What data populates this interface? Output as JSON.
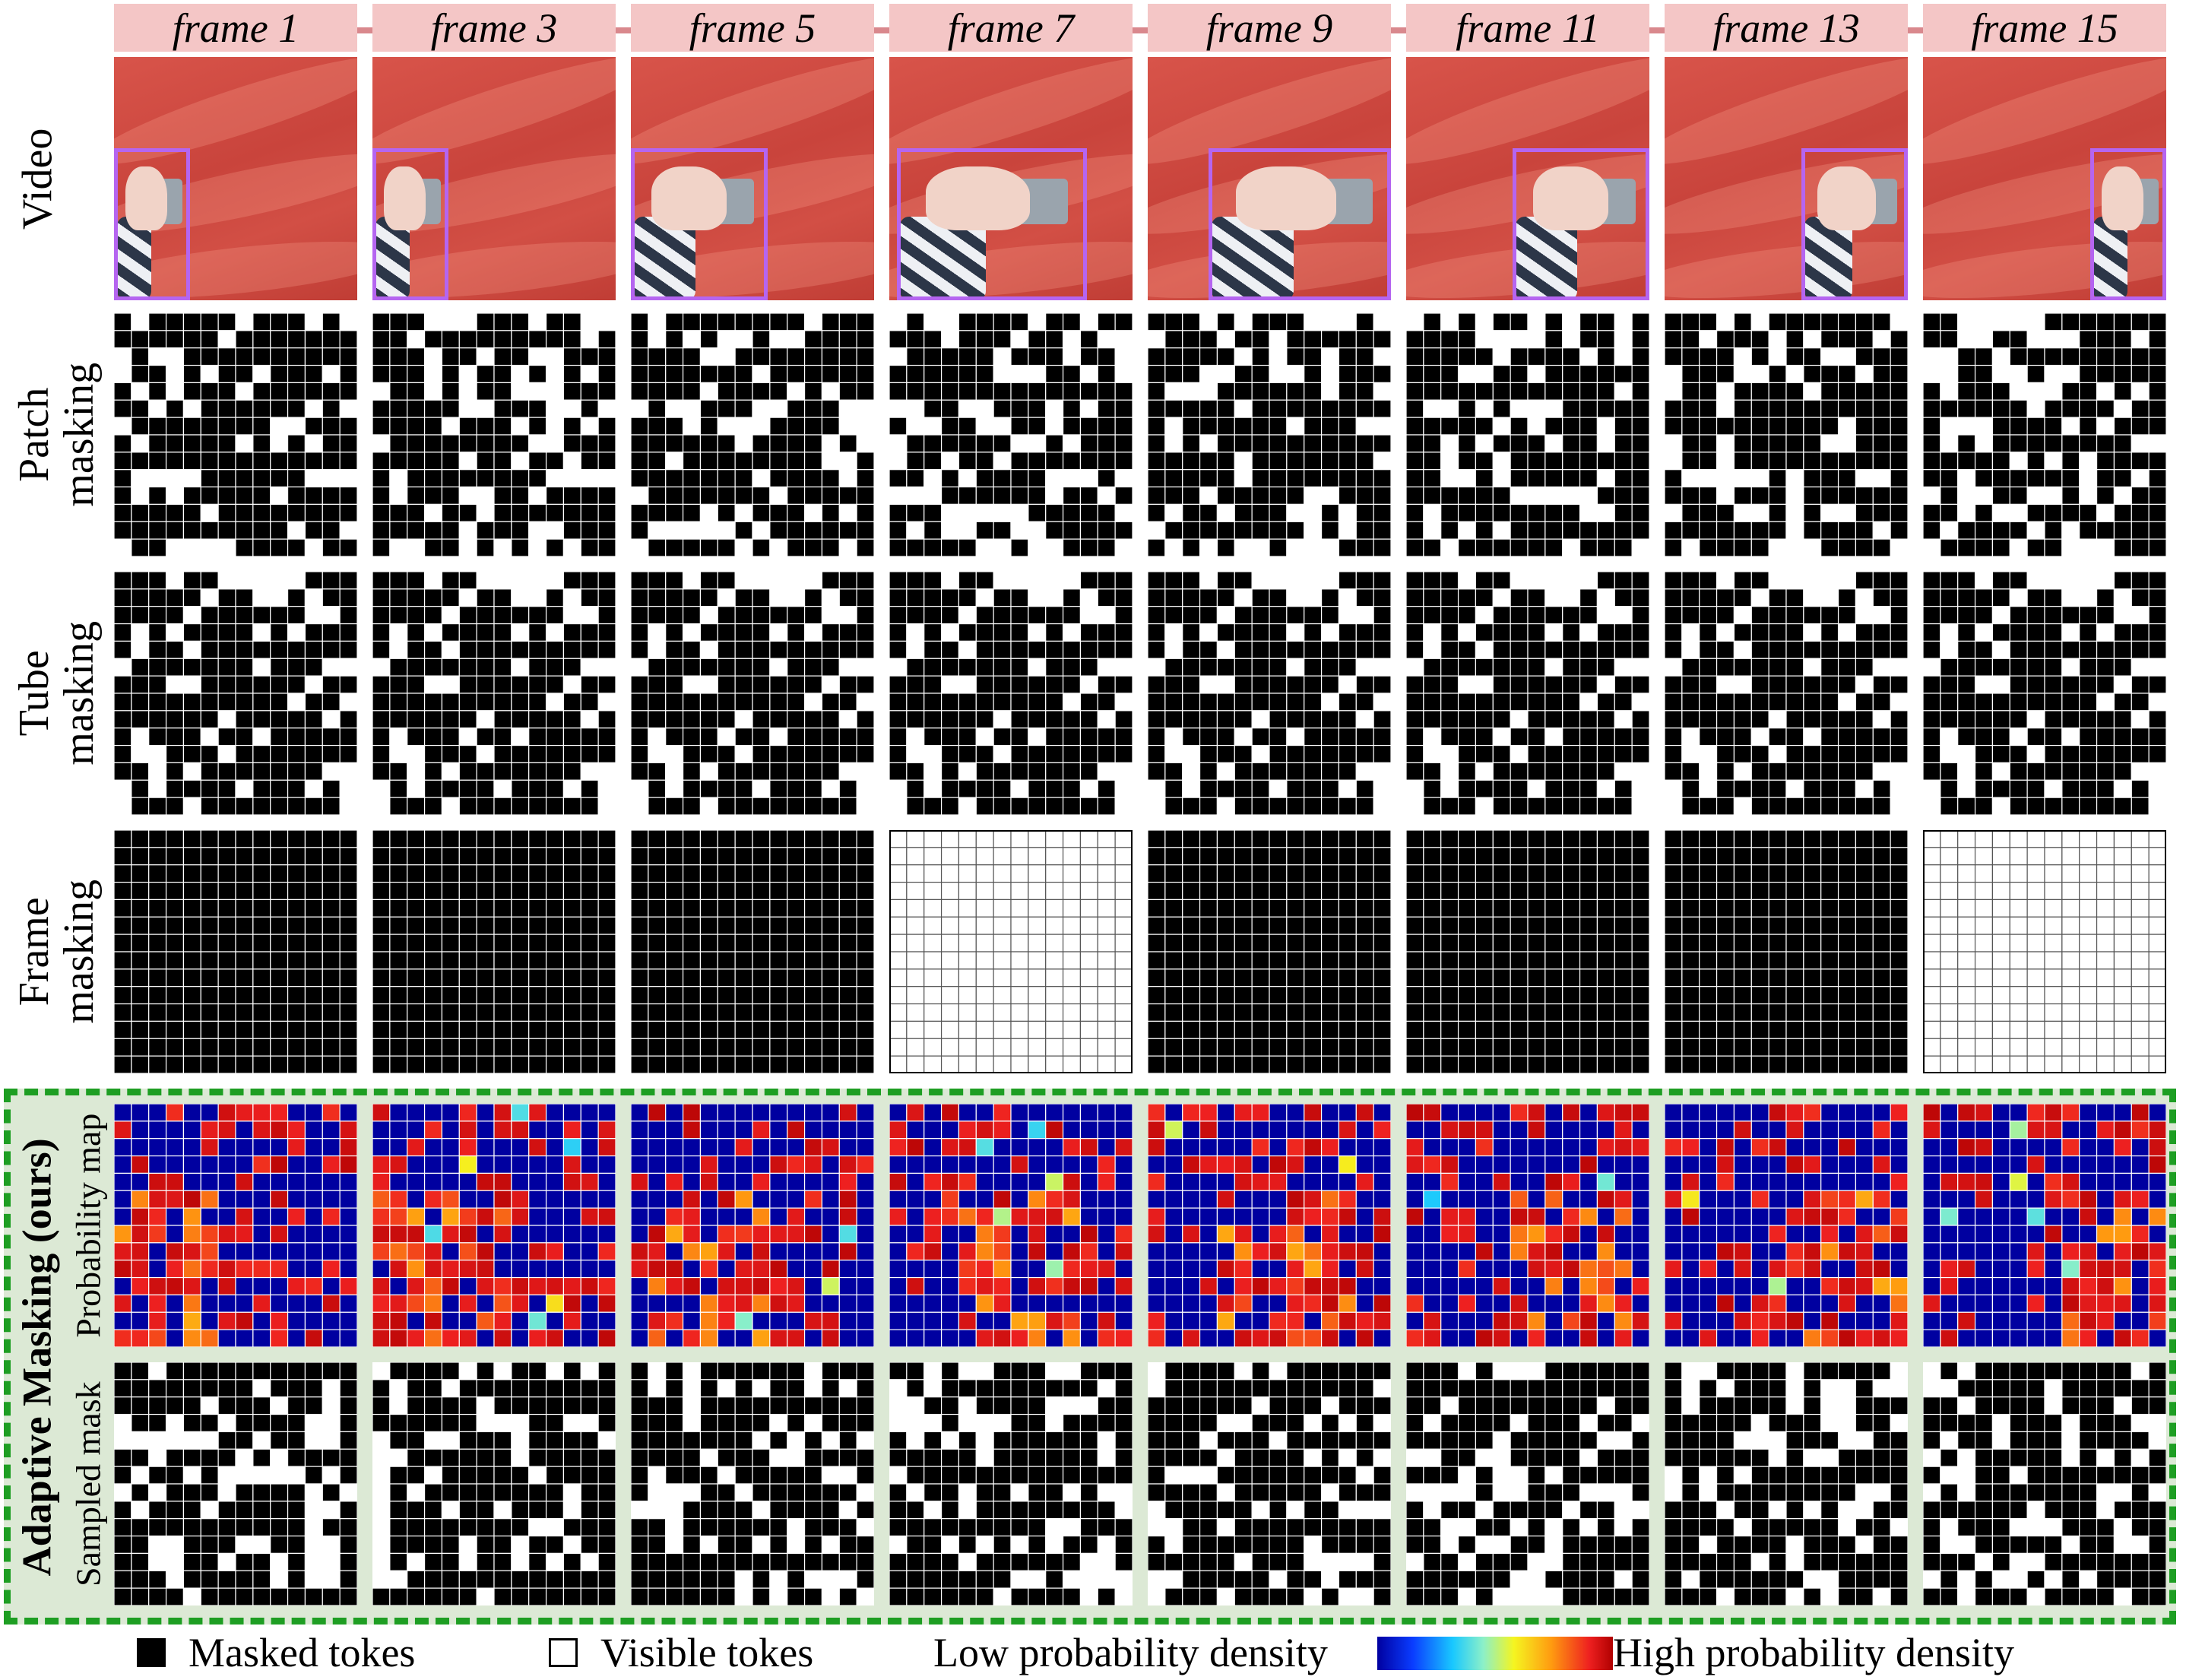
{
  "frames": [
    "frame 1",
    "frame 3",
    "frame 5",
    "frame 7",
    "frame 9",
    "frame 11",
    "frame 13",
    "frame 15"
  ],
  "row_labels": {
    "video": "Video",
    "patch": [
      "Patch",
      "masking"
    ],
    "tube": [
      "Tube",
      "masking"
    ],
    "frame": [
      "Frame",
      "masking"
    ],
    "ours_group": "Adaptive Masking (ours)",
    "prob_map": "Probability map",
    "sampled": "Sampled mask"
  },
  "frame_masking_visible": [
    false,
    false,
    false,
    true,
    false,
    false,
    false,
    true
  ],
  "grid_size": 14,
  "legend": {
    "masked": "Masked tokes",
    "visible": "Visible tokes",
    "low": "Low probability density",
    "high": "High probability density"
  },
  "colors": {
    "masked": "#000000",
    "visible": "#ffffff",
    "low_density": "#0000a0",
    "high_density": "#ee2020",
    "header_bg": "#f4c6c6",
    "hand_box": "#b565f0",
    "ours_border": "#1e9e23"
  }
}
